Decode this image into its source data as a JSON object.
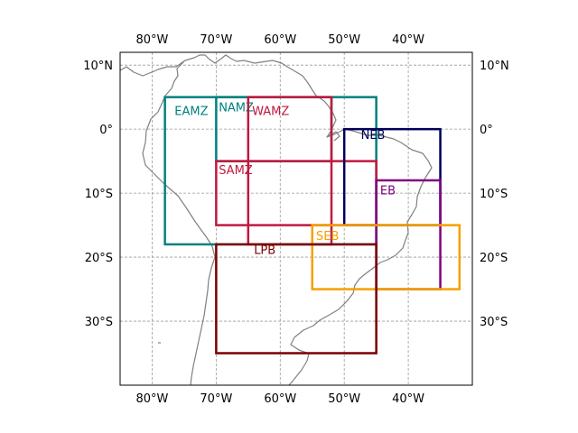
{
  "map": {
    "lon_range": [
      -85,
      -30
    ],
    "lat_range": [
      -40,
      12
    ],
    "lon_ticks": [
      {
        "value": -80,
        "label": "80°W"
      },
      {
        "value": -70,
        "label": "70°W"
      },
      {
        "value": -60,
        "label": "60°W"
      },
      {
        "value": -50,
        "label": "50°W"
      },
      {
        "value": -40,
        "label": "40°W"
      }
    ],
    "lat_ticks": [
      {
        "value": 10,
        "label": "10°N"
      },
      {
        "value": 0,
        "label": "0°"
      },
      {
        "value": -10,
        "label": "10°S"
      },
      {
        "value": -20,
        "label": "20°S"
      },
      {
        "value": -30,
        "label": "30°S"
      }
    ],
    "gridlines": true,
    "coastline_color": "#808080",
    "regions": [
      {
        "name": "EAMZ",
        "color": "#008080",
        "lon": [
          -78,
          -45
        ],
        "lat": [
          -18,
          5
        ],
        "label_at": [
          -76.5,
          2.2
        ]
      },
      {
        "name": "NAMZ",
        "color": "#008080",
        "lon": [
          -70,
          -52
        ],
        "lat": [
          -5,
          5
        ],
        "label_at": [
          -69.6,
          2.8
        ]
      },
      {
        "name": "WAMZ",
        "color": "#c0183f",
        "lon": [
          -65,
          -52
        ],
        "lat": [
          -18,
          5
        ],
        "label_at": [
          -64.4,
          2.2
        ]
      },
      {
        "name": "SAMZ",
        "color": "#c0183f",
        "lon": [
          -70,
          -45
        ],
        "lat": [
          -15,
          -5
        ],
        "label_at": [
          -69.6,
          -7.0
        ]
      },
      {
        "name": "NEB",
        "color": "#00005a",
        "lon": [
          -50,
          -35
        ],
        "lat": [
          -15,
          0
        ],
        "label_at": [
          -47.4,
          -1.5
        ]
      },
      {
        "name": "EB",
        "color": "#800080",
        "lon": [
          -45,
          -35
        ],
        "lat": [
          -25,
          -8
        ],
        "label_at": [
          -44.4,
          -10.2
        ]
      },
      {
        "name": "SEB",
        "color": "#f5a000",
        "lon": [
          -55,
          -32
        ],
        "lat": [
          -25,
          -15
        ],
        "label_at": [
          -54.4,
          -17.3
        ]
      },
      {
        "name": "LPB",
        "color": "#7a0000",
        "lon": [
          -70,
          -45
        ],
        "lat": [
          -35,
          -18
        ],
        "label_at": [
          -64.1,
          -19.5
        ]
      }
    ]
  }
}
